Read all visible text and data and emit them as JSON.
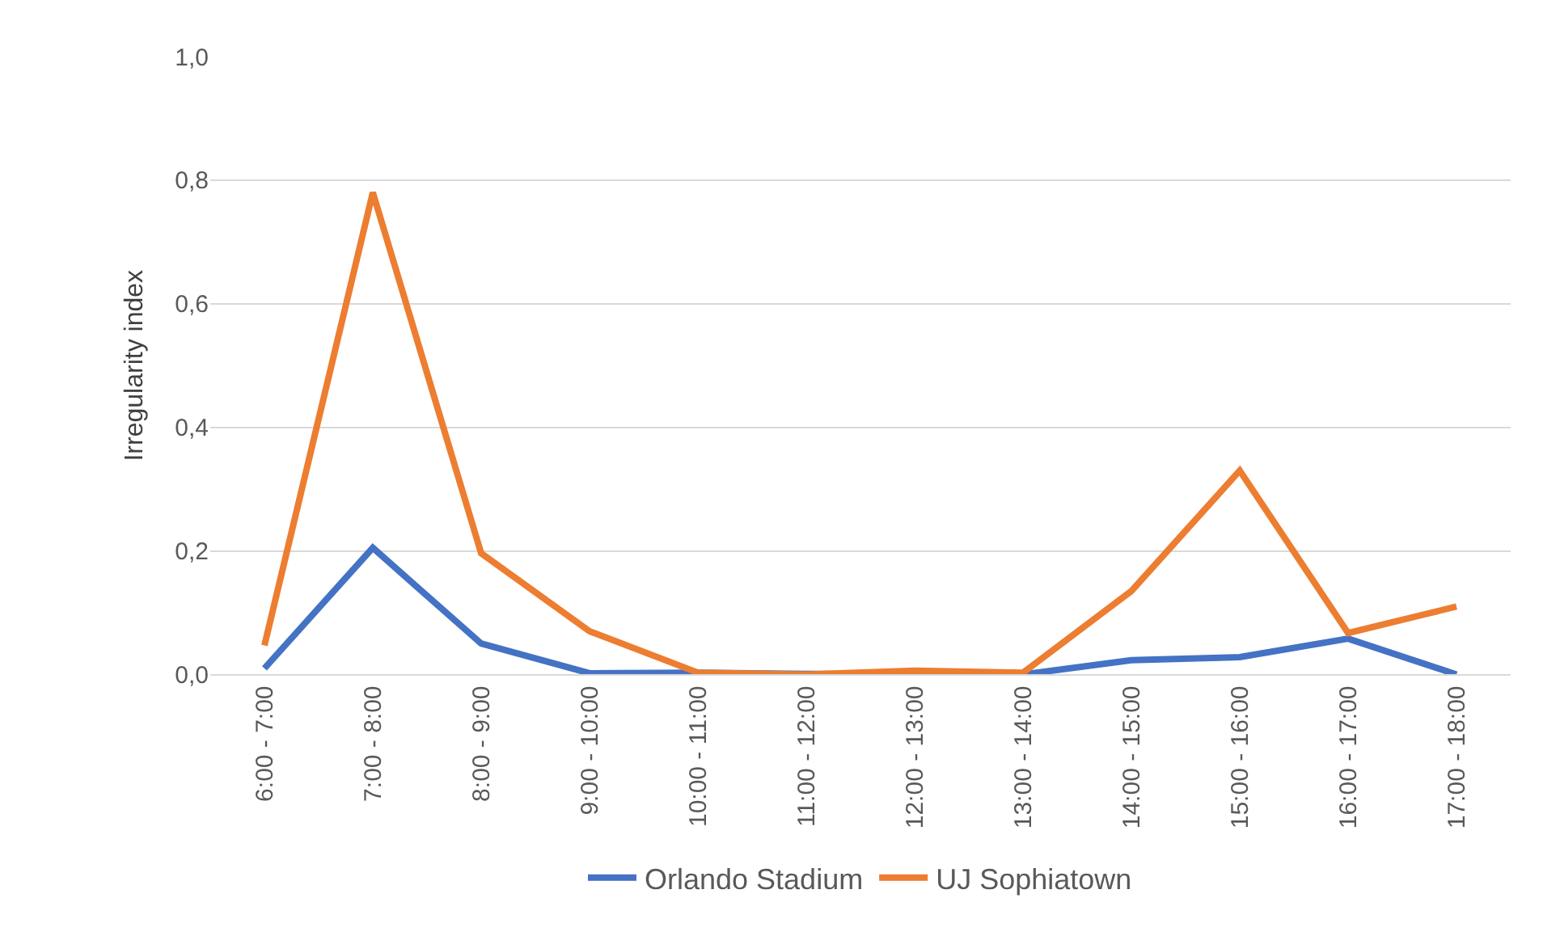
{
  "chart_data": {
    "type": "line",
    "ylabel": "Irregularity index",
    "categories": [
      "6:00 - 7:00",
      "7:00 - 8:00",
      "8:00 - 9:00",
      "9:00 - 10:00",
      "10:00 - 11:00",
      "11:00 - 12:00",
      "12:00 - 13:00",
      "13:00 - 14:00",
      "14:00 - 15:00",
      "15:00 - 16:00",
      "16:00 - 17:00",
      "17:00 - 18:00"
    ],
    "series": [
      {
        "name": "Orlando Stadium",
        "color": "#4472c4",
        "values": [
          0.01,
          0.205,
          0.05,
          0.002,
          0.003,
          0.001,
          0.0,
          0.0,
          0.023,
          0.028,
          0.058,
          0.0
        ]
      },
      {
        "name": "UJ Sophiatown",
        "color": "#ed7d31",
        "values": [
          0.047,
          0.78,
          0.196,
          0.07,
          0.003,
          0.0,
          0.006,
          0.003,
          0.135,
          0.33,
          0.067,
          0.11
        ]
      }
    ],
    "ylim": [
      0,
      1
    ],
    "yticks": [
      {
        "value": 0,
        "label": "0,0"
      },
      {
        "value": 0.2,
        "label": "0,2"
      },
      {
        "value": 0.4,
        "label": "0,4"
      },
      {
        "value": 0.6,
        "label": "0,6"
      },
      {
        "value": 0.8,
        "label": "0,8"
      },
      {
        "value": 1,
        "label": "1,0"
      }
    ],
    "grid": "y",
    "legend": "bottom",
    "marker": "none",
    "line_style": "solid"
  }
}
